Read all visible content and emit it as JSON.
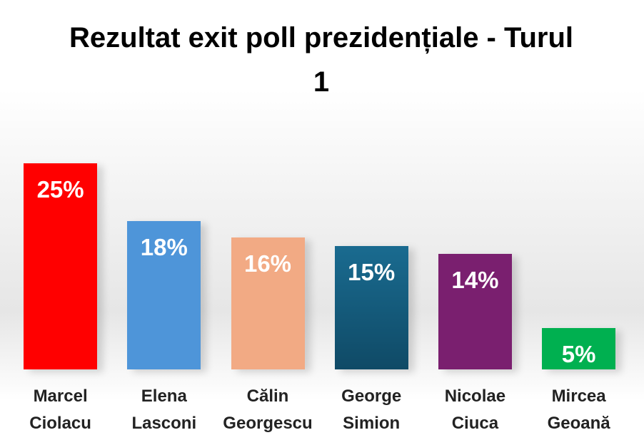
{
  "chart_data": {
    "type": "bar",
    "title": "Rezultat exit poll prezidențiale - Turul 1",
    "categories": [
      "Marcel Ciolacu",
      "Elena Lasconi",
      "Călin Georgescu",
      "George Simion",
      "Nicolae Ciuca",
      "Mircea Geoană"
    ],
    "values": [
      25,
      18,
      16,
      15,
      14,
      5
    ],
    "value_labels": [
      "25%",
      "18%",
      "16%",
      "15%",
      "14%",
      "5%"
    ],
    "colors": [
      "#ff0000",
      "#4e95d9",
      "#f2aa84",
      "#155d7f",
      "#7a1f6f",
      "#00b050"
    ]
  }
}
